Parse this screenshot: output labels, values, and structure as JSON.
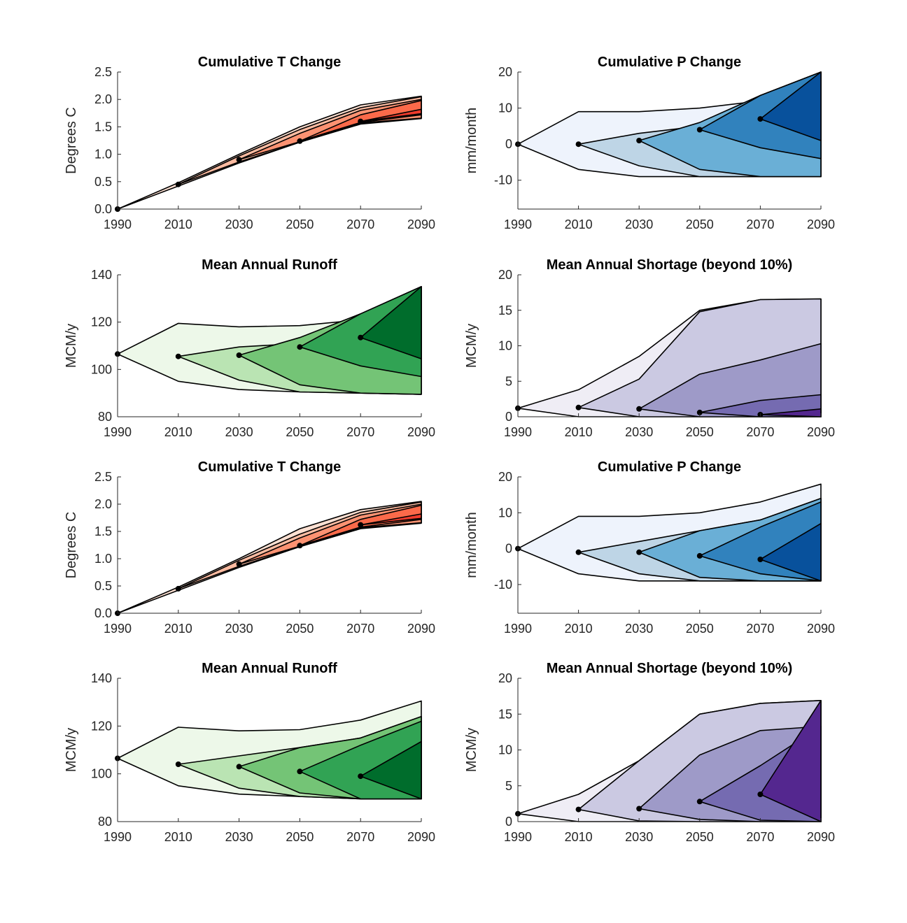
{
  "chart_data": [
    {
      "type": "area",
      "title": "Cumulative T Change",
      "ylabel": "Degrees C",
      "xlim": [
        1990,
        2090
      ],
      "ylim": [
        0,
        2.5
      ],
      "xticks": [
        "1990",
        "2010",
        "2030",
        "2050",
        "2070",
        "2090"
      ],
      "yticks": [
        "0.0",
        "0.5",
        "1.0",
        "1.5",
        "2.0",
        "2.5"
      ],
      "colors": [
        "#fde0d2",
        "#fcbba1",
        "#fc9272",
        "#fb6a4a",
        "#ef3b2c"
      ],
      "fans": [
        {
          "x": [
            1990,
            2010,
            2030,
            2050,
            2070,
            2090
          ],
          "upper": [
            0,
            0.48,
            1.0,
            1.5,
            1.9,
            2.06
          ],
          "lower": [
            0,
            0.42,
            0.84,
            1.22,
            1.55,
            1.65
          ]
        },
        {
          "x": [
            2010,
            2030,
            2050,
            2070,
            2090
          ],
          "upper": [
            0.45,
            0.97,
            1.45,
            1.85,
            2.05
          ],
          "lower": [
            0.45,
            0.86,
            1.22,
            1.56,
            1.66
          ]
        },
        {
          "x": [
            2030,
            2050,
            2070,
            2090
          ],
          "upper": [
            0.9,
            1.38,
            1.8,
            2.0
          ],
          "lower": [
            0.9,
            1.23,
            1.57,
            1.66
          ]
        },
        {
          "x": [
            2050,
            2070,
            2090
          ],
          "upper": [
            1.24,
            1.72,
            1.98
          ],
          "lower": [
            1.24,
            1.58,
            1.72
          ]
        },
        {
          "x": [
            2070,
            2090
          ],
          "upper": [
            1.6,
            1.82
          ],
          "lower": [
            1.6,
            1.74
          ]
        }
      ],
      "markers": {
        "x": [
          1990,
          2010,
          2030,
          2050,
          2070
        ],
        "y": [
          0,
          0.45,
          0.9,
          1.24,
          1.6
        ]
      }
    },
    {
      "type": "area",
      "title": "Cumulative P Change",
      "ylabel": "mm/month",
      "xlim": [
        1990,
        2090
      ],
      "ylim": [
        -18,
        20
      ],
      "xticks": [
        "1990",
        "2010",
        "2030",
        "2050",
        "2070",
        "2090"
      ],
      "yticks": [
        "-10",
        "0",
        "10",
        "20"
      ],
      "colors": [
        "#eef3fc",
        "#bed5e6",
        "#6aafd6",
        "#3182bd",
        "#08519c"
      ],
      "fans": [
        {
          "x": [
            1990,
            2010,
            2030,
            2050,
            2070,
            2090
          ],
          "upper": [
            0,
            9,
            9,
            10,
            12,
            20
          ],
          "lower": [
            0,
            -7,
            -9,
            -9,
            -9,
            -9
          ]
        },
        {
          "x": [
            2010,
            2030,
            2050,
            2070,
            2090
          ],
          "upper": [
            0,
            3,
            5,
            8,
            20
          ],
          "lower": [
            0,
            -6,
            -9,
            -9,
            -9
          ]
        },
        {
          "x": [
            2030,
            2050,
            2070,
            2090
          ],
          "upper": [
            1,
            6,
            13.5,
            20
          ],
          "lower": [
            1,
            -7,
            -9,
            -9
          ]
        },
        {
          "x": [
            2050,
            2070,
            2090
          ],
          "upper": [
            4,
            13.5,
            20
          ],
          "lower": [
            4,
            -1,
            -4
          ]
        },
        {
          "x": [
            2070,
            2090
          ],
          "upper": [
            7,
            20
          ],
          "lower": [
            7,
            1
          ]
        }
      ],
      "markers": {
        "x": [
          1990,
          2010,
          2030,
          2050,
          2070
        ],
        "y": [
          0,
          0,
          1,
          4,
          7
        ]
      }
    },
    {
      "type": "area",
      "title": "Mean Annual Runoff",
      "ylabel": "MCM/y",
      "xlim": [
        1990,
        2090
      ],
      "ylim": [
        80,
        140
      ],
      "xticks": [
        "1990",
        "2010",
        "2030",
        "2050",
        "2070",
        "2090"
      ],
      "yticks": [
        "80",
        "100",
        "120",
        "140"
      ],
      "colors": [
        "#edf8e9",
        "#bae4b3",
        "#74c476",
        "#31a354",
        "#006d2c"
      ],
      "fans": [
        {
          "x": [
            1990,
            2010,
            2030,
            2050,
            2070,
            2090
          ],
          "upper": [
            106.5,
            119.5,
            118,
            118.5,
            121,
            135
          ],
          "lower": [
            106.5,
            95,
            91.5,
            90.5,
            90,
            89.5
          ]
        },
        {
          "x": [
            2010,
            2030,
            2050,
            2070,
            2090
          ],
          "upper": [
            105.5,
            109.5,
            111,
            121,
            135
          ],
          "lower": [
            105.5,
            95.5,
            90.5,
            90,
            89.5
          ]
        },
        {
          "x": [
            2030,
            2050,
            2070,
            2090
          ],
          "upper": [
            106,
            113.5,
            123.5,
            135
          ],
          "lower": [
            106,
            93.5,
            90,
            89.5
          ]
        },
        {
          "x": [
            2050,
            2070,
            2090
          ],
          "upper": [
            109.5,
            123.5,
            135
          ],
          "lower": [
            109.5,
            101.5,
            97
          ]
        },
        {
          "x": [
            2070,
            2090
          ],
          "upper": [
            113.5,
            135
          ],
          "lower": [
            113.5,
            104.5
          ]
        }
      ],
      "markers": {
        "x": [
          1990,
          2010,
          2030,
          2050,
          2070
        ],
        "y": [
          106.5,
          105.5,
          106,
          109.5,
          113.5
        ]
      }
    },
    {
      "type": "area",
      "title": "Mean Annual Shortage (beyond 10%)",
      "ylabel": "MCM/y",
      "xlim": [
        1990,
        2090
      ],
      "ylim": [
        0,
        20
      ],
      "xticks": [
        "1990",
        "2010",
        "2030",
        "2050",
        "2070",
        "2090"
      ],
      "yticks": [
        "0",
        "5",
        "10",
        "15",
        "20"
      ],
      "colors": [
        "#efedf5",
        "#cbc9e2",
        "#9e9ac8",
        "#756bb1",
        "#54278f"
      ],
      "fans": [
        {
          "x": [
            1990,
            2010,
            2030,
            2050,
            2070,
            2090
          ],
          "upper": [
            1.2,
            3.8,
            8.5,
            15,
            16.5,
            16.6
          ],
          "lower": [
            1.2,
            0,
            0,
            0,
            0,
            0
          ]
        },
        {
          "x": [
            2010,
            2030,
            2050,
            2070,
            2090
          ],
          "upper": [
            1.3,
            5.3,
            14.8,
            16.5,
            16.6
          ],
          "lower": [
            1.3,
            0,
            0,
            0,
            0
          ]
        },
        {
          "x": [
            2030,
            2050,
            2070,
            2090
          ],
          "upper": [
            1.1,
            6,
            8,
            10.3
          ],
          "lower": [
            1.1,
            0,
            0,
            0
          ]
        },
        {
          "x": [
            2050,
            2070,
            2090
          ],
          "upper": [
            0.6,
            2.3,
            3.1
          ],
          "lower": [
            0.6,
            0,
            0
          ]
        },
        {
          "x": [
            2070,
            2090
          ],
          "upper": [
            0.3,
            1.1
          ],
          "lower": [
            0.3,
            0
          ]
        }
      ],
      "markers": {
        "x": [
          1990,
          2010,
          2030,
          2050,
          2070
        ],
        "y": [
          1.2,
          1.3,
          1.1,
          0.6,
          0.3
        ]
      }
    },
    {
      "type": "area",
      "title": "Cumulative T Change",
      "ylabel": "Degrees C",
      "xlim": [
        1990,
        2090
      ],
      "ylim": [
        0,
        2.5
      ],
      "xticks": [
        "1990",
        "2010",
        "2030",
        "2050",
        "2070",
        "2090"
      ],
      "yticks": [
        "0.0",
        "0.5",
        "1.0",
        "1.5",
        "2.0",
        "2.5"
      ],
      "colors": [
        "#fde0d2",
        "#fcbba1",
        "#fc9272",
        "#fb6a4a",
        "#ef3b2c"
      ],
      "fans": [
        {
          "x": [
            1990,
            2010,
            2030,
            2050,
            2070,
            2090
          ],
          "upper": [
            0,
            0.48,
            1.0,
            1.55,
            1.9,
            2.05
          ],
          "lower": [
            0,
            0.42,
            0.84,
            1.22,
            1.55,
            1.65
          ]
        },
        {
          "x": [
            2010,
            2030,
            2050,
            2070,
            2090
          ],
          "upper": [
            0.45,
            0.97,
            1.45,
            1.85,
            2.04
          ],
          "lower": [
            0.45,
            0.86,
            1.22,
            1.56,
            1.66
          ]
        },
        {
          "x": [
            2030,
            2050,
            2070,
            2090
          ],
          "upper": [
            0.9,
            1.38,
            1.8,
            2.0
          ],
          "lower": [
            0.9,
            1.23,
            1.57,
            1.66
          ]
        },
        {
          "x": [
            2050,
            2070,
            2090
          ],
          "upper": [
            1.24,
            1.72,
            1.98
          ],
          "lower": [
            1.24,
            1.58,
            1.72
          ]
        },
        {
          "x": [
            2070,
            2090
          ],
          "upper": [
            1.62,
            1.82
          ],
          "lower": [
            1.62,
            1.74
          ]
        }
      ],
      "markers": {
        "x": [
          1990,
          2010,
          2030,
          2050,
          2070
        ],
        "y": [
          0,
          0.45,
          0.9,
          1.24,
          1.62
        ]
      }
    },
    {
      "type": "area",
      "title": "Cumulative P Change",
      "ylabel": "mm/month",
      "xlim": [
        1990,
        2090
      ],
      "ylim": [
        -18,
        20
      ],
      "xticks": [
        "1990",
        "2010",
        "2030",
        "2050",
        "2070",
        "2090"
      ],
      "yticks": [
        "-10",
        "0",
        "10",
        "20"
      ],
      "colors": [
        "#eef3fc",
        "#bed5e6",
        "#6aafd6",
        "#3182bd",
        "#08519c"
      ],
      "fans": [
        {
          "x": [
            1990,
            2010,
            2030,
            2050,
            2070,
            2090
          ],
          "upper": [
            0,
            9,
            9,
            10,
            13,
            18
          ],
          "lower": [
            0,
            -7,
            -9,
            -9,
            -9,
            -9
          ]
        },
        {
          "x": [
            2010,
            2030,
            2050,
            2070,
            2090
          ],
          "upper": [
            -1,
            2,
            5,
            8,
            14
          ],
          "lower": [
            -1,
            -7,
            -9,
            -9,
            -9
          ]
        },
        {
          "x": [
            2030,
            2050,
            2070,
            2090
          ],
          "upper": [
            -1,
            5,
            8,
            14
          ],
          "lower": [
            -1,
            -8,
            -9,
            -9
          ]
        },
        {
          "x": [
            2050,
            2070,
            2090
          ],
          "upper": [
            -2,
            6,
            13
          ],
          "lower": [
            -2,
            -7,
            -9
          ]
        },
        {
          "x": [
            2070,
            2090
          ],
          "upper": [
            -3,
            7
          ],
          "lower": [
            -3,
            -9
          ]
        }
      ],
      "markers": {
        "x": [
          1990,
          2010,
          2030,
          2050,
          2070
        ],
        "y": [
          0,
          -1,
          -1,
          -2,
          -3
        ]
      }
    },
    {
      "type": "area",
      "title": "Mean Annual Runoff",
      "ylabel": "MCM/y",
      "xlim": [
        1990,
        2090
      ],
      "ylim": [
        80,
        140
      ],
      "xticks": [
        "1990",
        "2010",
        "2030",
        "2050",
        "2070",
        "2090"
      ],
      "yticks": [
        "80",
        "100",
        "120",
        "140"
      ],
      "colors": [
        "#edf8e9",
        "#bae4b3",
        "#74c476",
        "#31a354",
        "#006d2c"
      ],
      "fans": [
        {
          "x": [
            1990,
            2010,
            2030,
            2050,
            2070,
            2090
          ],
          "upper": [
            106.5,
            119.5,
            118,
            118.5,
            122.5,
            130.5
          ],
          "lower": [
            106.5,
            95,
            91.5,
            90.5,
            89.5,
            89.5
          ]
        },
        {
          "x": [
            2010,
            2030,
            2050,
            2070,
            2090
          ],
          "upper": [
            104,
            107.5,
            111,
            115,
            124
          ],
          "lower": [
            104,
            94,
            90.5,
            89.5,
            89.5
          ]
        },
        {
          "x": [
            2030,
            2050,
            2070,
            2090
          ],
          "upper": [
            103,
            111,
            115,
            124
          ],
          "lower": [
            103,
            92,
            89.5,
            89.5
          ]
        },
        {
          "x": [
            2050,
            2070,
            2090
          ],
          "upper": [
            101,
            112,
            122
          ],
          "lower": [
            101,
            89.5,
            89.5
          ]
        },
        {
          "x": [
            2070,
            2090
          ],
          "upper": [
            99,
            113.5
          ],
          "lower": [
            99,
            89.5
          ]
        }
      ],
      "markers": {
        "x": [
          1990,
          2010,
          2030,
          2050,
          2070
        ],
        "y": [
          106.5,
          104,
          103,
          101,
          99
        ]
      }
    },
    {
      "type": "area",
      "title": "Mean Annual Shortage (beyond 10%)",
      "ylabel": "MCM/y",
      "xlim": [
        1990,
        2090
      ],
      "ylim": [
        0,
        20
      ],
      "xticks": [
        "1990",
        "2010",
        "2030",
        "2050",
        "2070",
        "2090"
      ],
      "yticks": [
        "0",
        "5",
        "10",
        "15",
        "20"
      ],
      "colors": [
        "#efedf5",
        "#cbc9e2",
        "#9e9ac8",
        "#756bb1",
        "#54278f"
      ],
      "fans": [
        {
          "x": [
            1990,
            2010,
            2030,
            2050,
            2070,
            2090
          ],
          "upper": [
            1.1,
            3.8,
            8.5,
            15,
            16.5,
            16.9
          ],
          "lower": [
            1.1,
            0,
            0,
            0,
            0,
            0
          ]
        },
        {
          "x": [
            2010,
            2030,
            2050,
            2070,
            2090
          ],
          "upper": [
            1.7,
            8.5,
            15,
            16.5,
            16.9
          ],
          "lower": [
            1.7,
            0.1,
            0,
            0,
            0
          ]
        },
        {
          "x": [
            2030,
            2050,
            2070,
            2090
          ],
          "upper": [
            1.8,
            9.3,
            12.7,
            13.3
          ],
          "lower": [
            1.8,
            0.3,
            0,
            0
          ]
        },
        {
          "x": [
            2050,
            2070,
            2090
          ],
          "upper": [
            2.8,
            7.8,
            13.3
          ],
          "lower": [
            2.8,
            0.2,
            0
          ]
        },
        {
          "x": [
            2070,
            2090
          ],
          "upper": [
            3.8,
            16.9
          ],
          "lower": [
            3.8,
            0
          ]
        }
      ],
      "markers": {
        "x": [
          1990,
          2010,
          2030,
          2050,
          2070
        ],
        "y": [
          1.1,
          1.7,
          1.8,
          2.8,
          3.8
        ]
      }
    }
  ]
}
